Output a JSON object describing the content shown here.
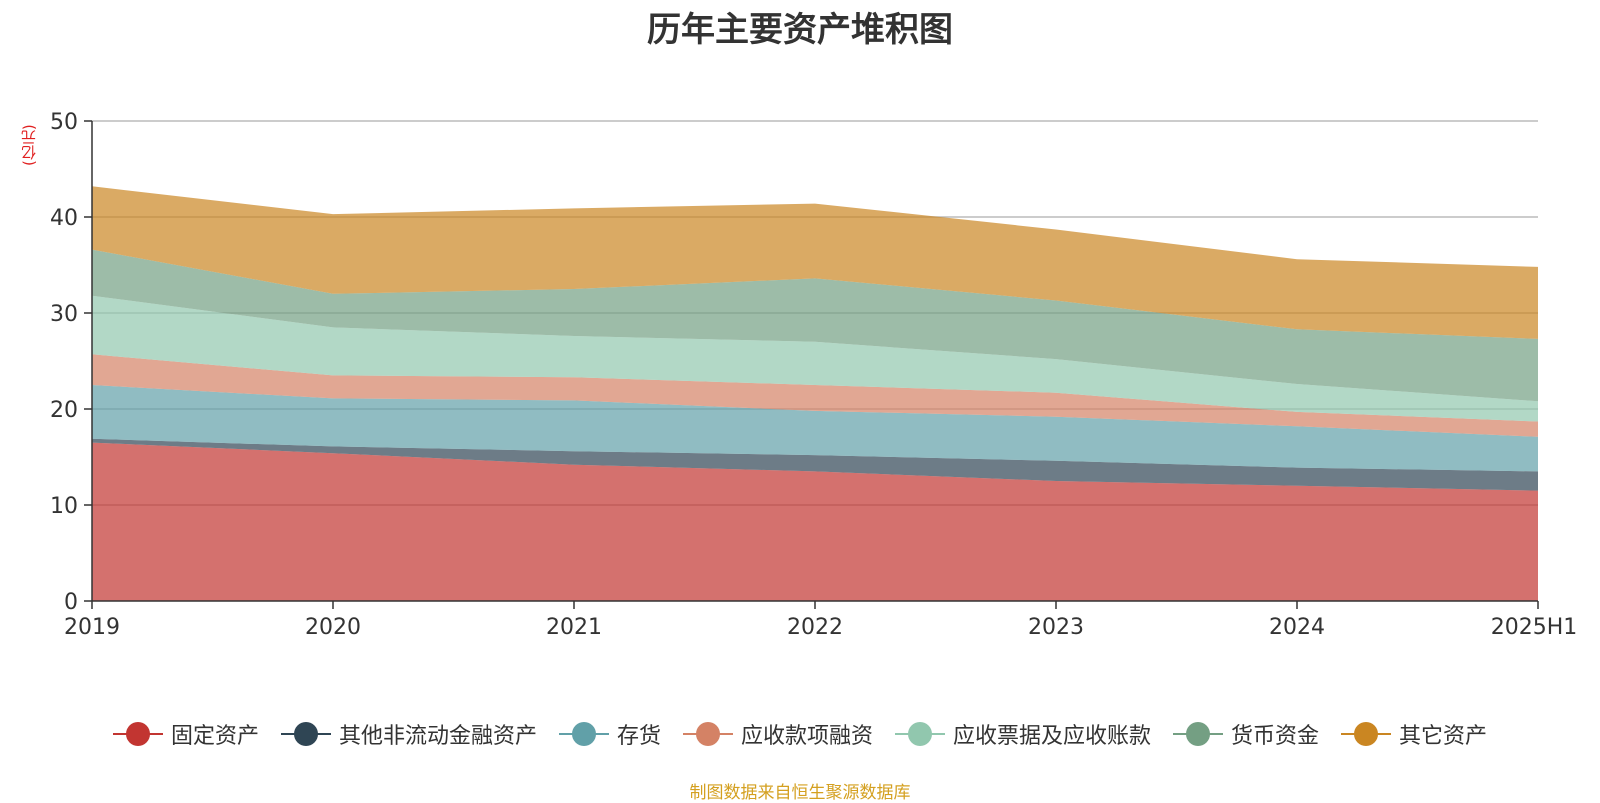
{
  "chart_data": {
    "type": "area",
    "stacked": true,
    "title": "历年主要资产堆积图",
    "unit_label": "(亿元)",
    "categories": [
      "2019",
      "2020",
      "2021",
      "2022",
      "2023",
      "2024",
      "2025H1"
    ],
    "ylim": [
      0,
      50
    ],
    "yticks": [
      "0",
      "10",
      "20",
      "30",
      "40",
      "50"
    ],
    "grid": true,
    "legend_position": "bottom",
    "series": [
      {
        "name": "固定资产",
        "color": "#c23531",
        "values": [
          16.5,
          15.4,
          14.2,
          13.5,
          12.5,
          12.0,
          11.5
        ]
      },
      {
        "name": "其他非流动金融资产",
        "color": "#2f4554",
        "values": [
          0.4,
          0.7,
          1.4,
          1.7,
          2.1,
          1.9,
          2.0
        ]
      },
      {
        "name": "存货",
        "color": "#61a0a8",
        "values": [
          5.6,
          5.0,
          5.3,
          4.6,
          4.6,
          4.3,
          3.6
        ]
      },
      {
        "name": "应收款项融资",
        "color": "#d48265",
        "values": [
          3.2,
          2.4,
          2.4,
          2.7,
          2.5,
          1.5,
          1.6
        ]
      },
      {
        "name": "应收票据及应收账款",
        "color": "#91c7ae",
        "values": [
          6.1,
          5.0,
          4.3,
          4.5,
          3.5,
          2.9,
          2.1
        ]
      },
      {
        "name": "货币资金",
        "color": "#749f83",
        "values": [
          4.8,
          3.5,
          4.9,
          6.6,
          6.1,
          5.7,
          6.5
        ]
      },
      {
        "name": "其它资产",
        "color": "#ca8622",
        "values": [
          6.6,
          8.3,
          8.4,
          7.8,
          7.4,
          7.3,
          7.5
        ]
      }
    ]
  },
  "footer": {
    "source": "制图数据来自恒生聚源数据库"
  }
}
